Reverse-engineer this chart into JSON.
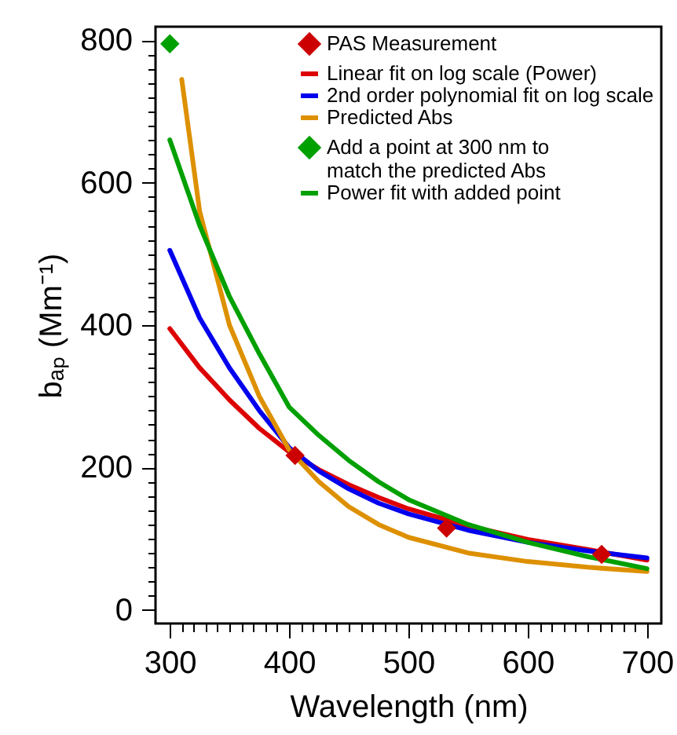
{
  "chart_data": {
    "type": "line",
    "xlabel": "Wavelength (nm)",
    "ylabel": "bₐₚ (Mm⁻¹)",
    "xlim": [
      288,
      712
    ],
    "ylim": [
      -19,
      819
    ],
    "xticks": [
      300,
      {
        "value": 310,
        "label": null
      },
      {
        "value": 320,
        "label": null
      },
      {
        "value": 330,
        "label": null
      },
      {
        "value": 340,
        "label": null
      },
      {
        "value": 350,
        "label": null
      },
      {
        "value": 360,
        "label": null
      },
      {
        "value": 370,
        "label": null
      },
      {
        "value": 380,
        "label": null
      },
      {
        "value": 390,
        "label": null
      },
      400,
      {
        "value": 410,
        "label": null
      },
      {
        "value": 420,
        "label": null
      },
      {
        "value": 430,
        "label": null
      },
      {
        "value": 440,
        "label": null
      },
      {
        "value": 450,
        "label": null
      },
      {
        "value": 460,
        "label": null
      },
      {
        "value": 470,
        "label": null
      },
      {
        "value": 480,
        "label": null
      },
      {
        "value": 490,
        "label": null
      },
      500,
      {
        "value": 510,
        "label": null
      },
      {
        "value": 520,
        "label": null
      },
      {
        "value": 530,
        "label": null
      },
      {
        "value": 540,
        "label": null
      },
      {
        "value": 550,
        "label": null
      },
      {
        "value": 560,
        "label": null
      },
      {
        "value": 570,
        "label": null
      },
      {
        "value": 580,
        "label": null
      },
      {
        "value": 590,
        "label": null
      },
      600,
      {
        "value": 610,
        "label": null
      },
      {
        "value": 620,
        "label": null
      },
      {
        "value": 630,
        "label": null
      },
      {
        "value": 640,
        "label": null
      },
      {
        "value": 650,
        "label": null
      },
      {
        "value": 660,
        "label": null
      },
      {
        "value": 670,
        "label": null
      },
      {
        "value": 680,
        "label": null
      },
      {
        "value": 690,
        "label": null
      },
      700
    ],
    "yticks": [
      0,
      {
        "value": 20,
        "label": null
      },
      {
        "value": 40,
        "label": null
      },
      {
        "value": 60,
        "label": null
      },
      {
        "value": 80,
        "label": null
      },
      {
        "value": 100,
        "label": null
      },
      {
        "value": 120,
        "label": null
      },
      {
        "value": 140,
        "label": null
      },
      {
        "value": 160,
        "label": null
      },
      {
        "value": 180,
        "label": null
      },
      200,
      {
        "value": 220,
        "label": null
      },
      {
        "value": 240,
        "label": null
      },
      {
        "value": 260,
        "label": null
      },
      {
        "value": 280,
        "label": null
      },
      {
        "value": 300,
        "label": null
      },
      {
        "value": 320,
        "label": null
      },
      {
        "value": 340,
        "label": null
      },
      {
        "value": 360,
        "label": null
      },
      {
        "value": 380,
        "label": null
      },
      400,
      {
        "value": 420,
        "label": null
      },
      {
        "value": 440,
        "label": null
      },
      {
        "value": 460,
        "label": null
      },
      {
        "value": 480,
        "label": null
      },
      {
        "value": 500,
        "label": null
      },
      {
        "value": 520,
        "label": null
      },
      {
        "value": 540,
        "label": null
      },
      {
        "value": 560,
        "label": null
      },
      {
        "value": 580,
        "label": null
      },
      600,
      {
        "value": 620,
        "label": null
      },
      {
        "value": 640,
        "label": null
      },
      {
        "value": 660,
        "label": null
      },
      {
        "value": 680,
        "label": null
      },
      {
        "value": 700,
        "label": null
      },
      {
        "value": 720,
        "label": null
      },
      {
        "value": 740,
        "label": null
      },
      {
        "value": 760,
        "label": null
      },
      {
        "value": 780,
        "label": null
      },
      800
    ],
    "grid": false,
    "legend": "top right",
    "line_style": "solid",
    "series": [
      {
        "name": "PAS Measurement",
        "type": "scatter",
        "marker": "diamond",
        "color": "#cc0000",
        "x": [
          405,
          532,
          662
        ],
        "values": [
          217,
          115,
          78
        ]
      },
      {
        "name": "Linear fit on log scale (Power)",
        "color": "#dd0000",
        "x": [
          300,
          325,
          350,
          375,
          400,
          425,
          450,
          475,
          500,
          550,
          600,
          650,
          700
        ],
        "values": [
          395,
          340,
          295,
          255,
          222,
          197,
          176,
          158,
          142,
          118,
          99,
          85,
          70
        ]
      },
      {
        "name": "2nd order polynomial fit on log scale",
        "color": "#0000ee",
        "x": [
          300,
          325,
          350,
          375,
          400,
          425,
          450,
          475,
          500,
          550,
          600,
          650,
          700
        ],
        "values": [
          505,
          410,
          340,
          280,
          228,
          195,
          170,
          150,
          135,
          112,
          95,
          83,
          73
        ]
      },
      {
        "name": "Predicted Abs",
        "color": "#dd9000",
        "x": [
          310,
          325,
          350,
          375,
          400,
          425,
          450,
          475,
          500,
          550,
          600,
          650,
          700
        ],
        "values": [
          745,
          560,
          400,
          300,
          225,
          180,
          145,
          120,
          102,
          80,
          68,
          60,
          54
        ]
      },
      {
        "name": "Add a point at 300 nm to\nmatch the predicted Abs",
        "type": "scatter",
        "marker": "diamond",
        "color": "#00a000",
        "x": [
          300
        ],
        "values": [
          795
        ]
      },
      {
        "name": "Power fit with added point",
        "color": "#00a000",
        "x": [
          300,
          325,
          350,
          375,
          400,
          425,
          450,
          475,
          500,
          550,
          600,
          650,
          700
        ],
        "values": [
          660,
          540,
          440,
          360,
          285,
          245,
          210,
          180,
          155,
          120,
          95,
          75,
          58
        ]
      }
    ]
  }
}
